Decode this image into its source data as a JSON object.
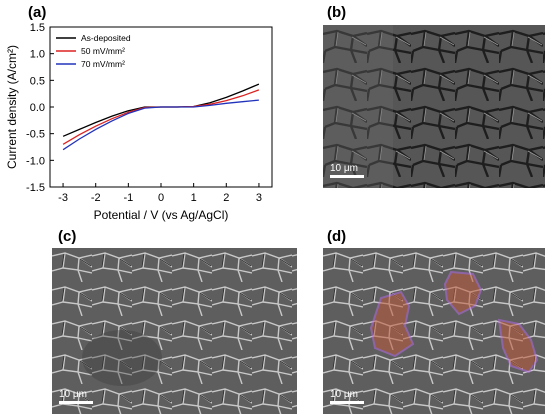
{
  "panels": {
    "a": {
      "label": "(a)"
    },
    "b": {
      "label": "(b)",
      "scale_text": "10 μm"
    },
    "c": {
      "label": "(c)",
      "scale_text": "10 μm"
    },
    "d": {
      "label": "(d)",
      "scale_text": "10 μm"
    }
  },
  "chart_data": {
    "type": "line",
    "xlabel": "Potential / V (vs Ag/AgCl)",
    "ylabel": "Current density (A/cm²)",
    "xlim": [
      -3.4,
      3.4
    ],
    "ylim": [
      -1.5,
      1.5
    ],
    "xticks": [
      -3,
      -2,
      -1,
      0,
      1,
      2,
      3
    ],
    "yticks": [
      -1.5,
      -1.0,
      -0.5,
      0.0,
      0.5,
      1.0,
      1.5
    ],
    "ytick_labels": [
      "-1.5",
      "-1.0",
      "-0.5",
      "0.0",
      "0.5",
      "1.0",
      "1.5"
    ],
    "legend": "top-left",
    "series": [
      {
        "name": "As-deposited",
        "color": "#000000",
        "x": [
          -3,
          -2.5,
          -2,
          -1.5,
          -1,
          -0.5,
          0,
          0.5,
          1,
          1.5,
          2,
          2.5,
          3
        ],
        "y": [
          -0.55,
          -0.42,
          -0.29,
          -0.17,
          -0.07,
          0.0,
          0.0,
          0.0,
          0.01,
          0.08,
          0.18,
          0.3,
          0.43
        ]
      },
      {
        "name": "50 mV/mm²",
        "color": "#dd2222",
        "x": [
          -3,
          -2.5,
          -2,
          -1.5,
          -1,
          -0.5,
          0,
          0.5,
          1,
          1.5,
          2,
          2.5,
          3
        ],
        "y": [
          -0.7,
          -0.52,
          -0.36,
          -0.22,
          -0.1,
          -0.01,
          0.0,
          0.0,
          0.01,
          0.05,
          0.12,
          0.21,
          0.32
        ]
      },
      {
        "name": "70 mV/mm²",
        "color": "#2233bb",
        "x": [
          -3,
          -2.5,
          -2,
          -1.5,
          -1,
          -0.5,
          0,
          0.5,
          1,
          1.5,
          2,
          2.5,
          3
        ],
        "y": [
          -0.8,
          -0.6,
          -0.42,
          -0.26,
          -0.12,
          -0.02,
          0.0,
          0.0,
          0.0,
          0.03,
          0.07,
          0.1,
          0.13
        ]
      }
    ]
  }
}
